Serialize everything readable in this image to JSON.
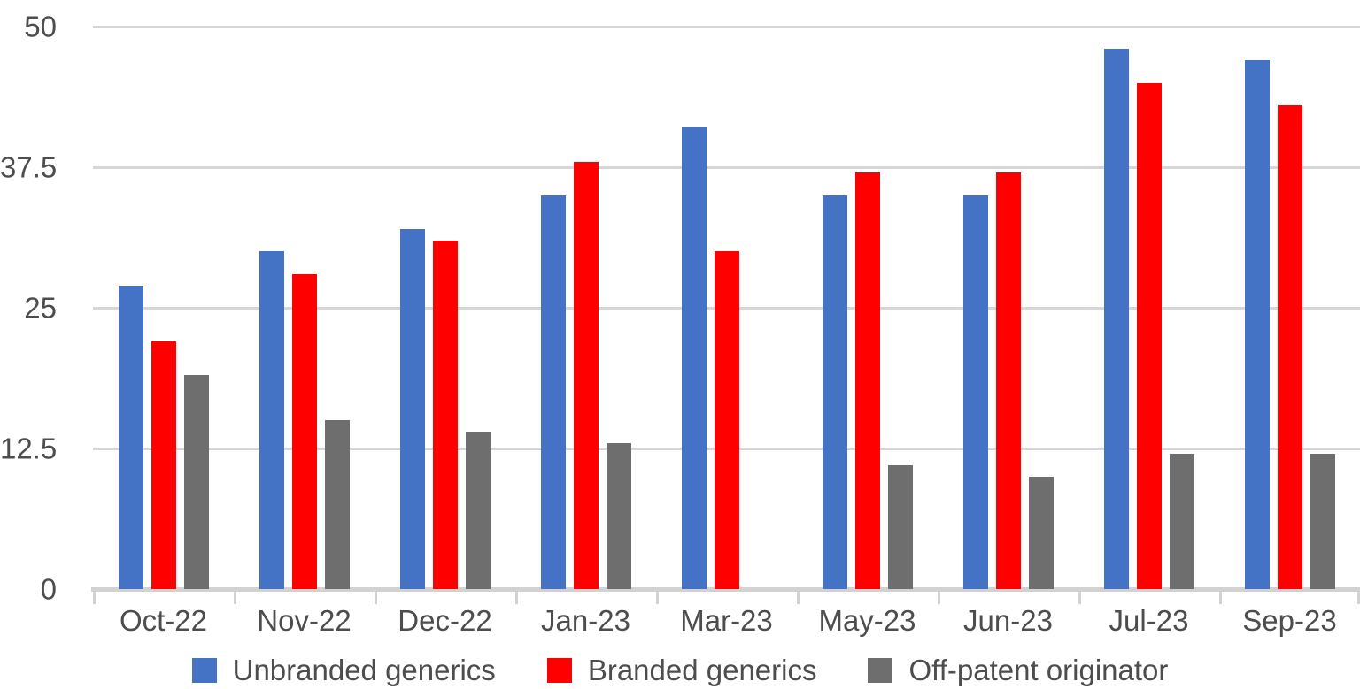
{
  "chart_data": {
    "type": "bar",
    "title": "",
    "xlabel": "",
    "ylabel": "",
    "categories": [
      "Oct-22",
      "Nov-22",
      "Dec-22",
      "Jan-23",
      "Mar-23",
      "May-23",
      "Jun-23",
      "Jul-23",
      "Sep-23"
    ],
    "series": [
      {
        "name": "Unbranded generics",
        "color": "#4472c4",
        "values": [
          27,
          30,
          32,
          35,
          41,
          35,
          35,
          48,
          47
        ]
      },
      {
        "name": "Branded generics",
        "color": "#ff0000",
        "values": [
          22,
          28,
          31,
          38,
          30,
          37,
          37,
          45,
          43
        ]
      },
      {
        "name": "Off-patent originator",
        "color": "#6e6e6e",
        "values": [
          19,
          15,
          14,
          13,
          null,
          11,
          10,
          12,
          12
        ]
      }
    ],
    "y_axis": {
      "min": 0,
      "max": 50,
      "tick_values": [
        0,
        12.5,
        25,
        37.5,
        50
      ],
      "tick_labels": [
        "0",
        "12.5",
        "25",
        "37.5",
        "50"
      ]
    },
    "grid": true,
    "legend_position": "bottom",
    "colors": {
      "gridline": "#d6d6d6",
      "axis_line": "#d2d2d2",
      "label_text": "#4d4d4d",
      "background": "#ffffff"
    }
  }
}
